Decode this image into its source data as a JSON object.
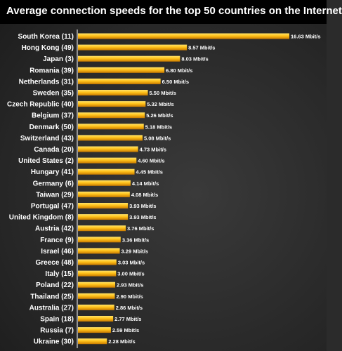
{
  "chart_data": {
    "type": "bar",
    "orientation": "horizontal",
    "title": "Average connection speeds for the top 50 countries on the Internet",
    "categories": [
      "South Korea (11)",
      "Hong Kong (49)",
      "Japan (3)",
      "Romania (39)",
      "Netherlands (31)",
      "Sweden (35)",
      "Czech Republic (40)",
      "Belgium (37)",
      "Denmark (50)",
      "Switzerland (43)",
      "Canada (20)",
      "United States (2)",
      "Hungary (41)",
      "Germany (6)",
      "Taiwan (29)",
      "Portugal (47)",
      "United Kingdom (8)",
      "Austria (42)",
      "France (9)",
      "Israel (46)",
      "Greece (48)",
      "Italy (15)",
      "Poland (22)",
      "Thailand (25)",
      "Australia (27)",
      "Spain (18)",
      "Russia (7)",
      "Ukraine (30)"
    ],
    "values": [
      16.63,
      8.57,
      8.03,
      6.8,
      6.5,
      5.5,
      5.32,
      5.26,
      5.18,
      5.08,
      4.73,
      4.6,
      4.45,
      4.14,
      4.08,
      3.93,
      3.93,
      3.76,
      3.36,
      3.29,
      3.03,
      3.0,
      2.93,
      2.9,
      2.86,
      2.77,
      2.59,
      2.28
    ],
    "value_labels": [
      "16.63 Mbit/s",
      "8.57 Mbit/s",
      "8.03 Mbit/s",
      "6.80 Mbit/s",
      "6.50 Mbit/s",
      "5.50 Mbit/s",
      "5.32 Mbit/s",
      "5.26 Mbit/s",
      "5.18 Mbit/s",
      "5.08 Mbit/s",
      "4.73 Mbit/s",
      "4.60 Mbit/s",
      "4.45 Mbit/s",
      "4.14 Mbit/s",
      "4.08 Mbit/s",
      "3.93 Mbit/s",
      "3.93 Mbit/s",
      "3.76 Mbit/s",
      "3.36 Mbit/s",
      "3.29 Mbit/s",
      "3.03 Mbit/s",
      "3.00 Mbit/s",
      "2.93 Mbit/s",
      "2.90 Mbit/s",
      "2.86 Mbit/s",
      "2.77 Mbit/s",
      "2.59 Mbit/s",
      "2.28 Mbit/s"
    ],
    "xlim": [
      0,
      16.63
    ],
    "grid": false,
    "legend": "none",
    "colors": {
      "bar_light": "#ffe36a",
      "bar_mid": "#ffc21a",
      "bar_dark": "#c97a00",
      "axis_line": "#ffffff",
      "label_text": "#ffffff",
      "background": "#2b2b2b",
      "title_bar": "#000000"
    }
  }
}
